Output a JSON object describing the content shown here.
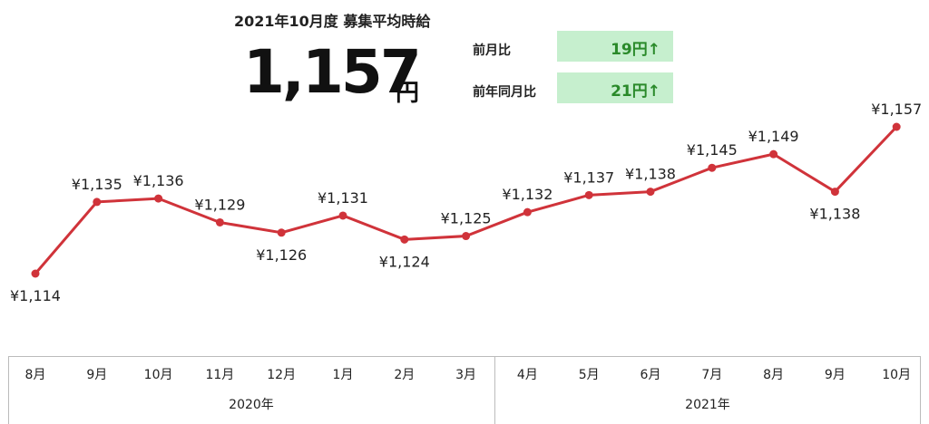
{
  "header": {
    "title": "2021年10月度 募集平均時給",
    "value": "1,157",
    "unit": "円"
  },
  "comparisons": [
    {
      "label": "前月比",
      "value": "19円↑"
    },
    {
      "label": "前年同月比",
      "value": "21円↑"
    }
  ],
  "colors": {
    "line": "#d0333a",
    "increase_bg": "#c6efce",
    "increase_text": "#2a8a2a"
  },
  "chart_data": {
    "type": "line",
    "categories": [
      "8月",
      "9月",
      "10月",
      "11月",
      "12月",
      "1月",
      "2月",
      "3月",
      "4月",
      "5月",
      "6月",
      "7月",
      "8月",
      "9月",
      "10月"
    ],
    "year_groups": [
      {
        "label": "2020年",
        "count": 5
      },
      {
        "label": "2021年",
        "count": 10
      }
    ],
    "values": [
      1114,
      1135,
      1136,
      1129,
      1126,
      1131,
      1124,
      1125,
      1132,
      1137,
      1138,
      1145,
      1149,
      1138,
      1157
    ],
    "data_labels": [
      "¥1,114",
      "¥1,135",
      "¥1,136",
      "¥1,129",
      "¥1,126",
      "¥1,131",
      "¥1,124",
      "¥1,125",
      "¥1,132",
      "¥1,137",
      "¥1,138",
      "¥1,145",
      "¥1,149",
      "¥1,138",
      "¥1,157"
    ],
    "grid": false,
    "legend": "none"
  }
}
